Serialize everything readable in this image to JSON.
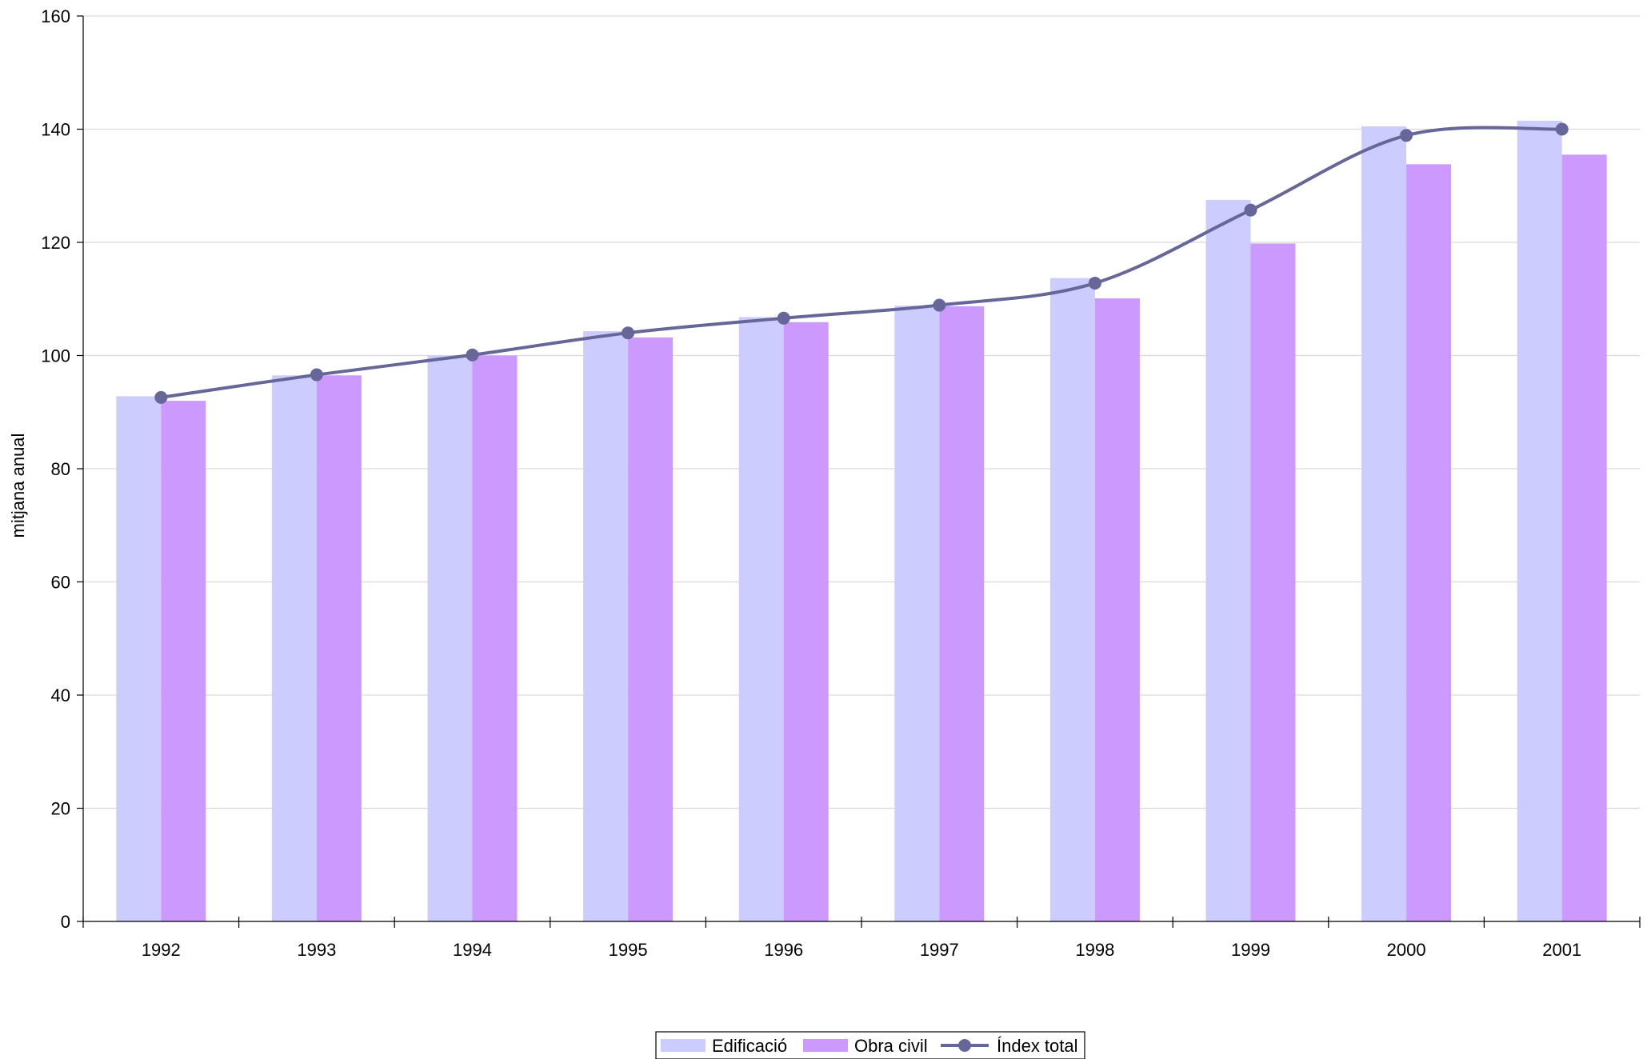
{
  "chart_data": {
    "type": "bar",
    "title": "",
    "xlabel": "",
    "ylabel": "mitjana anual",
    "ylim": [
      0,
      160
    ],
    "yticks": [
      0,
      20,
      40,
      60,
      80,
      100,
      120,
      140,
      160
    ],
    "grid": true,
    "legend_position": "bottom-center",
    "categories": [
      "1992",
      "1993",
      "1994",
      "1995",
      "1996",
      "1997",
      "1998",
      "1999",
      "2000",
      "2001"
    ],
    "series": [
      {
        "name": "Edificació",
        "type": "bar",
        "color": "#ccccff",
        "values": [
          92.8,
          96.5,
          100.0,
          104.3,
          106.8,
          108.8,
          113.7,
          127.5,
          140.5,
          141.5
        ]
      },
      {
        "name": "Obra civil",
        "type": "bar",
        "color": "#cc99ff",
        "values": [
          92.0,
          96.5,
          100.0,
          103.2,
          105.9,
          108.7,
          110.1,
          119.8,
          133.8,
          135.5
        ]
      },
      {
        "name": "Índex total",
        "type": "line",
        "color": "#666699",
        "values": [
          92.6,
          96.6,
          100.1,
          104.0,
          106.6,
          108.9,
          112.8,
          125.7,
          138.9,
          140.0
        ]
      }
    ]
  }
}
